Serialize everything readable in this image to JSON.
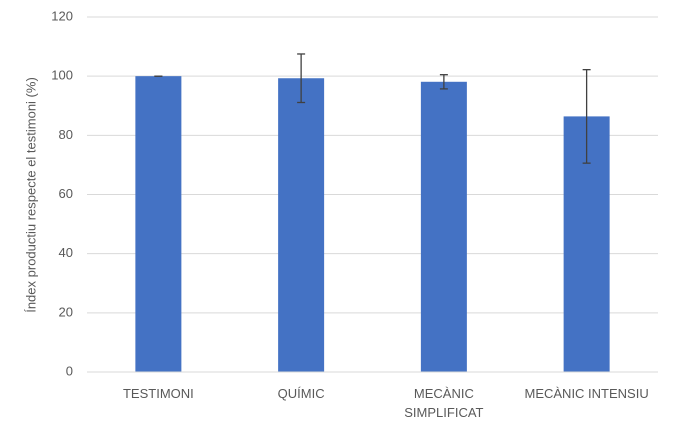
{
  "chart_data": {
    "type": "bar",
    "y_label": "Índex productiu respecte el testimoni (%)",
    "categories": [
      "TESTIMONI",
      "QUÍMIC",
      "MECÀNIC SIMPLIFICAT",
      "MECÀNIC INTENSIU"
    ],
    "values": [
      100,
      99.3,
      98.1,
      86.4
    ],
    "errors": [
      0,
      8.2,
      2.4,
      15.8
    ],
    "color": "#4472c4",
    "ylim": [
      0,
      120
    ],
    "yticks": [
      0,
      20,
      40,
      60,
      80,
      100,
      120
    ],
    "grid": true
  }
}
